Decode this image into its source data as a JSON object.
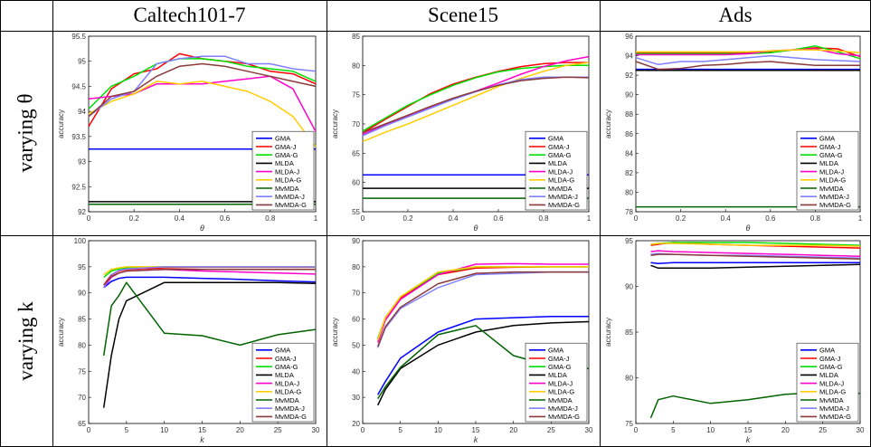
{
  "columns": [
    "Caltech101-7",
    "Scene15",
    "Ads"
  ],
  "rows": [
    "varying θ",
    "varying k"
  ],
  "legend_colors": {
    "GMA": "#0000ff",
    "GMA-J": "#ff0000",
    "GMA-G": "#00e000",
    "MLDA": "#000000",
    "MLDA-J": "#ff00cc",
    "MLDA-G": "#ffcc00",
    "MvMDA": "#006400",
    "MvMDA-J": "#8080ff",
    "MvMDA-G": "#8b3a3a"
  },
  "chart_data": [
    {
      "type": "line",
      "title": "Caltech101-7",
      "row": "varying θ",
      "xlabel": "θ",
      "ylabel": "accuracy",
      "xlim": [
        0,
        1
      ],
      "ylim": [
        92,
        95.5
      ],
      "xticks": [
        "0",
        "0.2",
        "0.4",
        "0.6",
        "0.8",
        "1"
      ],
      "yticks": [
        "92",
        "92.5",
        "93",
        "93.5",
        "94",
        "94.5",
        "95",
        "95.5"
      ],
      "legend": "bottom-right",
      "x": [
        0,
        0.1,
        0.2,
        0.3,
        0.4,
        0.5,
        0.6,
        0.7,
        0.8,
        0.9,
        1
      ],
      "series": [
        {
          "name": "GMA",
          "values": [
            93.25,
            93.25,
            93.25,
            93.25,
            93.25,
            93.25,
            93.25,
            93.25,
            93.25,
            93.25,
            93.25
          ]
        },
        {
          "name": "GMA-J",
          "values": [
            93.7,
            94.45,
            94.75,
            94.85,
            95.15,
            95.05,
            95.0,
            94.95,
            94.8,
            94.75,
            94.55
          ]
        },
        {
          "name": "GMA-G",
          "values": [
            94.05,
            94.5,
            94.7,
            94.95,
            95.05,
            95.05,
            95.0,
            94.9,
            94.85,
            94.8,
            94.6
          ]
        },
        {
          "name": "MLDA",
          "values": [
            92.2,
            92.2,
            92.2,
            92.2,
            92.2,
            92.2,
            92.2,
            92.2,
            92.2,
            92.2,
            92.2
          ]
        },
        {
          "name": "MLDA-J",
          "values": [
            94.25,
            94.3,
            94.35,
            94.55,
            94.55,
            94.55,
            94.6,
            94.65,
            94.7,
            94.45,
            93.6
          ]
        },
        {
          "name": "MLDA-G",
          "values": [
            93.95,
            94.2,
            94.35,
            94.6,
            94.55,
            94.6,
            94.5,
            94.4,
            94.2,
            93.9,
            93.3
          ]
        },
        {
          "name": "MvMDA",
          "values": [
            92.15,
            92.15,
            92.15,
            92.15,
            92.15,
            92.15,
            92.15,
            92.15,
            92.15,
            92.15,
            92.15
          ]
        },
        {
          "name": "MvMDA-J",
          "values": [
            93.9,
            94.25,
            94.4,
            94.95,
            95.05,
            95.1,
            95.1,
            94.95,
            94.95,
            94.85,
            94.8
          ]
        },
        {
          "name": "MvMDA-G",
          "values": [
            93.9,
            94.3,
            94.4,
            94.7,
            94.9,
            94.95,
            94.9,
            94.8,
            94.7,
            94.6,
            94.5
          ]
        }
      ]
    },
    {
      "type": "line",
      "title": "Scene15",
      "row": "varying θ",
      "xlabel": "θ",
      "ylabel": "accuracy",
      "xlim": [
        0,
        1
      ],
      "ylim": [
        55,
        85
      ],
      "xticks": [
        "0",
        "0.2",
        "0.4",
        "0.6",
        "0.8",
        "1"
      ],
      "yticks": [
        "55",
        "60",
        "65",
        "70",
        "75",
        "80",
        "85"
      ],
      "legend": "bottom-right",
      "x": [
        0,
        0.1,
        0.2,
        0.3,
        0.4,
        0.5,
        0.6,
        0.7,
        0.8,
        0.9,
        1
      ],
      "series": [
        {
          "name": "GMA",
          "values": [
            61.3,
            61.3,
            61.3,
            61.3,
            61.3,
            61.3,
            61.3,
            61.3,
            61.3,
            61.3,
            61.3
          ]
        },
        {
          "name": "GMA-J",
          "values": [
            68.5,
            70.8,
            73.0,
            75.2,
            76.8,
            78.0,
            79.0,
            79.8,
            80.3,
            80.5,
            80.5
          ]
        },
        {
          "name": "GMA-G",
          "values": [
            68.8,
            71.0,
            73.2,
            75.0,
            76.6,
            77.9,
            78.9,
            79.5,
            79.8,
            80.0,
            80.0
          ]
        },
        {
          "name": "MLDA",
          "values": [
            59.0,
            59.0,
            59.0,
            59.0,
            59.0,
            59.0,
            59.0,
            59.0,
            59.0,
            59.0,
            59.0
          ]
        },
        {
          "name": "MLDA-J",
          "values": [
            68.2,
            69.8,
            71.3,
            72.8,
            74.2,
            75.6,
            77.0,
            78.5,
            79.8,
            80.8,
            81.5
          ]
        },
        {
          "name": "MLDA-G",
          "values": [
            67.0,
            68.6,
            70.0,
            71.6,
            73.2,
            74.8,
            76.4,
            77.8,
            79.0,
            80.0,
            80.5
          ]
        },
        {
          "name": "MvMDA",
          "values": [
            57.3,
            57.3,
            57.3,
            57.3,
            57.3,
            57.3,
            57.3,
            57.3,
            57.3,
            57.3,
            57.3
          ]
        },
        {
          "name": "MvMDA-J",
          "values": [
            68.0,
            69.7,
            71.2,
            72.7,
            74.2,
            75.5,
            76.7,
            77.6,
            78.0,
            78.0,
            78.0
          ]
        },
        {
          "name": "MvMDA-G",
          "values": [
            68.5,
            70.0,
            71.5,
            73.0,
            74.4,
            75.6,
            76.6,
            77.4,
            77.8,
            78.0,
            77.9
          ]
        }
      ]
    },
    {
      "type": "line",
      "title": "Ads",
      "row": "varying θ",
      "xlabel": "θ",
      "ylabel": "accuracy",
      "xlim": [
        0,
        1
      ],
      "ylim": [
        78,
        96
      ],
      "xticks": [
        "0",
        "0.2",
        "0.4",
        "0.6",
        "0.8",
        "1"
      ],
      "yticks": [
        "78",
        "80",
        "82",
        "84",
        "86",
        "88",
        "90",
        "92",
        "94",
        "96"
      ],
      "legend": "bottom-right",
      "x": [
        0,
        0.1,
        0.2,
        0.3,
        0.4,
        0.5,
        0.6,
        0.7,
        0.8,
        0.9,
        1
      ],
      "series": [
        {
          "name": "GMA",
          "values": [
            92.6,
            92.6,
            92.6,
            92.6,
            92.6,
            92.6,
            92.6,
            92.6,
            92.6,
            92.6,
            92.6
          ]
        },
        {
          "name": "GMA-J",
          "values": [
            94.3,
            94.3,
            94.3,
            94.3,
            94.3,
            94.3,
            94.4,
            94.6,
            94.8,
            94.7,
            93.9
          ]
        },
        {
          "name": "GMA-G",
          "values": [
            94.2,
            94.2,
            94.2,
            94.2,
            94.2,
            94.2,
            94.3,
            94.6,
            95.0,
            94.4,
            93.7
          ]
        },
        {
          "name": "MLDA",
          "values": [
            92.5,
            92.5,
            92.5,
            92.5,
            92.5,
            92.5,
            92.5,
            92.5,
            92.5,
            92.5,
            92.5
          ]
        },
        {
          "name": "MLDA-J",
          "values": [
            94.1,
            94.1,
            94.1,
            94.1,
            94.1,
            94.2,
            94.5,
            94.6,
            94.7,
            94.2,
            94.0
          ]
        },
        {
          "name": "MLDA-G",
          "values": [
            94.4,
            94.4,
            94.4,
            94.4,
            94.4,
            94.4,
            94.5,
            94.6,
            94.6,
            94.5,
            94.3
          ]
        },
        {
          "name": "MvMDA",
          "values": [
            78.5,
            78.5,
            78.5,
            78.5,
            78.5,
            78.5,
            78.5,
            78.5,
            78.5,
            78.5,
            78.5
          ]
        },
        {
          "name": "MvMDA-J",
          "values": [
            93.8,
            93.1,
            93.4,
            93.4,
            93.6,
            93.8,
            94.0,
            93.8,
            93.6,
            93.5,
            93.4
          ]
        },
        {
          "name": "MvMDA-G",
          "values": [
            93.4,
            92.6,
            92.7,
            93.0,
            93.1,
            93.3,
            93.4,
            93.2,
            93.0,
            93.0,
            93.0
          ]
        }
      ]
    },
    {
      "type": "line",
      "title": "Caltech101-7",
      "row": "varying k",
      "xlabel": "k",
      "ylabel": "accuracy",
      "xlim": [
        0,
        30
      ],
      "ylim": [
        65,
        100
      ],
      "xticks": [
        "0",
        "5",
        "10",
        "15",
        "20",
        "25",
        "30"
      ],
      "yticks": [
        "65",
        "70",
        "75",
        "80",
        "85",
        "90",
        "95",
        "100"
      ],
      "legend": "bottom-right",
      "x": [
        2,
        3,
        4,
        5,
        10,
        15,
        20,
        25,
        30
      ],
      "series": [
        {
          "name": "GMA",
          "values": [
            91.0,
            92.2,
            92.8,
            93.0,
            93.0,
            92.8,
            92.6,
            92.3,
            92.1
          ]
        },
        {
          "name": "GMA-J",
          "values": [
            91.5,
            93.5,
            94.2,
            94.5,
            94.8,
            94.9,
            94.9,
            94.9,
            94.9
          ]
        },
        {
          "name": "GMA-G",
          "values": [
            93.0,
            94.2,
            94.6,
            94.8,
            95.0,
            95.0,
            95.0,
            95.0,
            95.0
          ]
        },
        {
          "name": "MLDA",
          "values": [
            68.0,
            78.0,
            85.0,
            88.5,
            92.0,
            92.0,
            92.0,
            92.0,
            91.8
          ]
        },
        {
          "name": "MLDA-J",
          "values": [
            91.0,
            93.0,
            93.8,
            94.2,
            94.5,
            94.2,
            94.0,
            93.8,
            93.6
          ]
        },
        {
          "name": "MLDA-G",
          "values": [
            93.5,
            94.5,
            94.8,
            95.0,
            95.0,
            95.0,
            95.0,
            95.0,
            95.0
          ]
        },
        {
          "name": "MvMDA",
          "values": [
            78.0,
            87.5,
            89.5,
            92.0,
            82.3,
            81.8,
            80.0,
            82.0,
            83.0
          ]
        },
        {
          "name": "MvMDA-J",
          "values": [
            91.0,
            93.5,
            94.3,
            94.6,
            95.0,
            95.0,
            95.0,
            95.0,
            95.0
          ]
        },
        {
          "name": "MvMDA-G",
          "values": [
            91.5,
            93.2,
            93.8,
            94.2,
            94.5,
            94.5,
            94.5,
            94.5,
            94.5
          ]
        }
      ]
    },
    {
      "type": "line",
      "title": "Scene15",
      "row": "varying k",
      "xlabel": "k",
      "ylabel": "accuracy",
      "xlim": [
        0,
        30
      ],
      "ylim": [
        20,
        90
      ],
      "xticks": [
        "0",
        "5",
        "10",
        "15",
        "20",
        "25",
        "30"
      ],
      "yticks": [
        "20",
        "30",
        "40",
        "50",
        "60",
        "70",
        "80",
        "90"
      ],
      "legend": "bottom-right",
      "x": [
        2,
        3,
        5,
        10,
        15,
        20,
        25,
        30
      ],
      "series": [
        {
          "name": "GMA",
          "values": [
            31.0,
            36.0,
            45.0,
            55.0,
            60.0,
            60.5,
            61.0,
            61.0
          ]
        },
        {
          "name": "GMA-J",
          "values": [
            52.0,
            60.0,
            68.0,
            77.0,
            79.5,
            79.8,
            80.0,
            80.0
          ]
        },
        {
          "name": "GMA-G",
          "values": [
            52.5,
            60.5,
            68.5,
            77.5,
            80.0,
            80.0,
            80.0,
            80.0
          ]
        },
        {
          "name": "MLDA",
          "values": [
            27.0,
            33.0,
            41.0,
            50.0,
            55.0,
            57.5,
            58.5,
            59.0
          ]
        },
        {
          "name": "MLDA-J",
          "values": [
            51.0,
            59.5,
            67.5,
            77.0,
            81.0,
            81.2,
            81.0,
            81.0
          ]
        },
        {
          "name": "MLDA-G",
          "values": [
            52.0,
            60.5,
            68.5,
            78.0,
            80.0,
            80.0,
            80.0,
            80.0
          ]
        },
        {
          "name": "MvMDA",
          "values": [
            29.5,
            34.0,
            41.5,
            54.0,
            57.5,
            46.0,
            42.0,
            41.0
          ]
        },
        {
          "name": "MvMDA-J",
          "values": [
            49.0,
            56.5,
            64.0,
            72.0,
            77.0,
            77.5,
            78.0,
            78.0
          ]
        },
        {
          "name": "MvMDA-G",
          "values": [
            49.5,
            57.0,
            64.5,
            73.5,
            77.5,
            78.0,
            78.0,
            78.0
          ]
        }
      ]
    },
    {
      "type": "line",
      "title": "Ads",
      "row": "varying k",
      "xlabel": "k",
      "ylabel": "accuracy",
      "xlim": [
        0,
        30
      ],
      "ylim": [
        75,
        95
      ],
      "xticks": [
        "0",
        "5",
        "10",
        "15",
        "20",
        "25",
        "30"
      ],
      "yticks": [
        "75",
        "80",
        "85",
        "90",
        "95"
      ],
      "legend": "bottom-right",
      "x": [
        2,
        3,
        5,
        10,
        15,
        20,
        25,
        30
      ],
      "series": [
        {
          "name": "GMA",
          "values": [
            92.6,
            92.5,
            92.6,
            92.6,
            92.6,
            92.6,
            92.6,
            92.6
          ]
        },
        {
          "name": "GMA-J",
          "values": [
            94.5,
            94.6,
            94.8,
            94.6,
            94.5,
            94.4,
            94.3,
            94.2
          ]
        },
        {
          "name": "GMA-G",
          "values": [
            94.6,
            94.7,
            94.8,
            94.8,
            94.8,
            94.7,
            94.6,
            94.5
          ]
        },
        {
          "name": "MLDA",
          "values": [
            92.3,
            92.0,
            92.0,
            92.0,
            92.1,
            92.2,
            92.3,
            92.4
          ]
        },
        {
          "name": "MLDA-J",
          "values": [
            93.8,
            93.9,
            93.8,
            93.7,
            93.6,
            93.5,
            93.4,
            93.3
          ]
        },
        {
          "name": "MLDA-G",
          "values": [
            94.6,
            94.7,
            94.7,
            94.6,
            94.5,
            94.5,
            94.5,
            94.4
          ]
        },
        {
          "name": "MvMDA",
          "values": [
            75.6,
            77.6,
            78.0,
            77.2,
            77.6,
            78.2,
            78.4,
            78.3
          ]
        },
        {
          "name": "MvMDA-J",
          "values": [
            93.5,
            93.6,
            93.5,
            93.4,
            93.4,
            93.3,
            93.2,
            93.1
          ]
        },
        {
          "name": "MvMDA-G",
          "values": [
            93.4,
            93.5,
            93.5,
            93.4,
            93.3,
            93.2,
            93.1,
            93.0
          ]
        }
      ]
    }
  ]
}
